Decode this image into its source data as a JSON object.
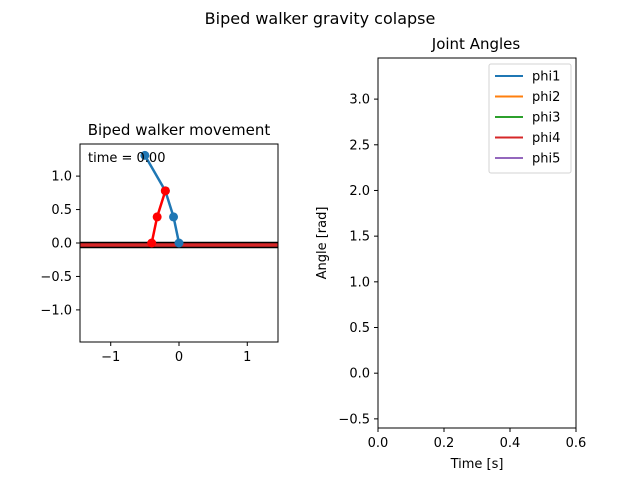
{
  "figure_title": "Biped walker gravity colapse",
  "chart_data": [
    {
      "type": "line",
      "title": "Biped walker movement",
      "annotation": "time = 0.00",
      "xlim": [
        -1.45,
        1.45
      ],
      "ylim": [
        -1.48,
        1.48
      ],
      "xticks": [
        "−1",
        "0",
        "1"
      ],
      "xtick_values": [
        -1,
        0,
        1
      ],
      "yticks": [
        "1.0",
        "0.5",
        "0.0",
        "−0.5",
        "−1.0"
      ],
      "ytick_values": [
        1.0,
        0.5,
        0.0,
        -0.5,
        -1.0
      ],
      "ground": {
        "y": -0.03,
        "color": "#d62728"
      },
      "leg_blue": {
        "color": "#1f77b4",
        "x": [
          0.0,
          -0.08,
          -0.2,
          -0.5
        ],
        "y": [
          0.0,
          0.39,
          0.78,
          1.31
        ]
      },
      "leg_red": {
        "color": "#ff0000",
        "x": [
          -0.4,
          -0.32,
          -0.2
        ],
        "y": [
          0.0,
          0.39,
          0.78
        ]
      }
    },
    {
      "type": "line",
      "title": "Joint Angles",
      "xlabel": "Time [s]",
      "ylabel": "Angle [rad]",
      "xlim": [
        0,
        0.6
      ],
      "ylim": [
        -0.6,
        3.45
      ],
      "xticks": [
        "0.0",
        "0.2",
        "0.4",
        "0.6"
      ],
      "xtick_values": [
        0.0,
        0.2,
        0.4,
        0.6
      ],
      "yticks": [
        "3.0",
        "2.5",
        "2.0",
        "1.5",
        "1.0",
        "0.5",
        "0.0",
        "−0.5"
      ],
      "ytick_values": [
        3.0,
        2.5,
        2.0,
        1.5,
        1.0,
        0.5,
        0.0,
        -0.5
      ],
      "legend_position": "top-right",
      "series": [
        {
          "name": "phi1",
          "color": "#1f77b4",
          "values": []
        },
        {
          "name": "phi2",
          "color": "#ff7f0e",
          "values": []
        },
        {
          "name": "phi3",
          "color": "#2ca02c",
          "values": []
        },
        {
          "name": "phi4",
          "color": "#d62728",
          "values": []
        },
        {
          "name": "phi5",
          "color": "#9467bd",
          "values": []
        }
      ]
    }
  ]
}
